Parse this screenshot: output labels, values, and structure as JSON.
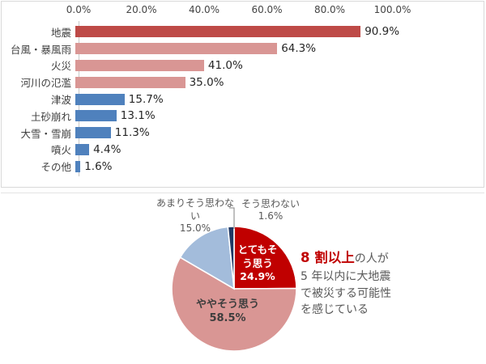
{
  "page": {
    "background": "#FFFFFF"
  },
  "chart_data": [
    {
      "type": "bar",
      "orientation": "horizontal",
      "title": "",
      "xlabel": "",
      "ylabel": "",
      "xlim": [
        0,
        100
      ],
      "x_ticks": [
        "0.0%",
        "20.0%",
        "40.0%",
        "60.0%",
        "80.0%",
        "100.0%"
      ],
      "grid": false,
      "categories": [
        "地震",
        "台風・暴風雨",
        "火災",
        "河川の氾濫",
        "津波",
        "土砂崩れ",
        "大雪・雪崩",
        "噴火",
        "その他"
      ],
      "values": [
        90.9,
        64.3,
        41.0,
        35.0,
        15.7,
        13.1,
        11.3,
        4.4,
        1.6
      ],
      "value_labels": [
        "90.9%",
        "64.3%",
        "41.0%",
        "35.0%",
        "15.7%",
        "13.1%",
        "11.3%",
        "4.4%",
        "1.6%"
      ],
      "bar_colors": [
        "#BE4A47",
        "#D99694",
        "#D99694",
        "#D99694",
        "#4F81BD",
        "#4F81BD",
        "#4F81BD",
        "#4F81BD",
        "#4F81BD"
      ]
    },
    {
      "type": "pie",
      "start_angle_deg": 0,
      "direction": "clockwise",
      "slices": [
        {
          "label": "とてもそう思う",
          "pct": 24.9,
          "color": "#C00000",
          "label_lines": [
            "とてもそ",
            "う思う",
            "24.9%"
          ],
          "label_color": "#FFFFFF",
          "label_bold": true
        },
        {
          "label": "ややそう思う",
          "pct": 58.5,
          "color": "#D99694",
          "label_lines": [
            "ややそう思う",
            "58.5%"
          ],
          "label_color": "#3D3D3D",
          "label_bold": true
        },
        {
          "label": "あまりそう思わない",
          "pct": 15.0,
          "color": "#A3BCDB",
          "label_lines": [
            "あまりそう思わな",
            "い",
            "15.0%"
          ],
          "label_color": "#595959",
          "label_bold": false
        },
        {
          "label": "そう思わない",
          "pct": 1.6,
          "color": "#1F3864",
          "label_lines": [
            "そう思わない",
            "1.6%"
          ],
          "label_color": "#595959",
          "label_bold": false
        }
      ]
    }
  ],
  "annotation": {
    "highlight": "8 割以上",
    "line1_rest": "の人が",
    "lines": [
      "5 年以内に大地震",
      "で被災する可能性",
      "を感じている"
    ],
    "highlight_color": "#C00000",
    "text_color": "#595959"
  }
}
